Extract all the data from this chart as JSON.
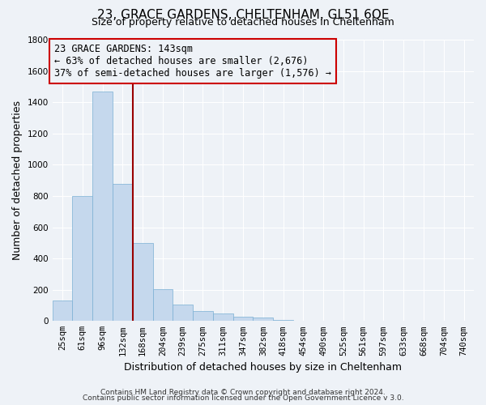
{
  "title": "23, GRACE GARDENS, CHELTENHAM, GL51 6QE",
  "subtitle": "Size of property relative to detached houses in Cheltenham",
  "xlabel": "Distribution of detached houses by size in Cheltenham",
  "ylabel": "Number of detached properties",
  "footer_lines": [
    "Contains HM Land Registry data © Crown copyright and database right 2024.",
    "Contains public sector information licensed under the Open Government Licence v 3.0."
  ],
  "bar_labels": [
    "25sqm",
    "61sqm",
    "96sqm",
    "132sqm",
    "168sqm",
    "204sqm",
    "239sqm",
    "275sqm",
    "311sqm",
    "347sqm",
    "382sqm",
    "418sqm",
    "454sqm",
    "490sqm",
    "525sqm",
    "561sqm",
    "597sqm",
    "633sqm",
    "668sqm",
    "704sqm",
    "740sqm"
  ],
  "bar_values": [
    130,
    800,
    1470,
    880,
    500,
    205,
    105,
    65,
    50,
    30,
    20,
    5,
    0,
    0,
    0,
    0,
    0,
    0,
    0,
    0,
    0
  ],
  "bar_color": "#c5d8ed",
  "bar_edgecolor": "#7aafd4",
  "ylim": [
    0,
    1800
  ],
  "yticks": [
    0,
    200,
    400,
    600,
    800,
    1000,
    1200,
    1400,
    1600,
    1800
  ],
  "vline_index": 3,
  "vline_color": "#990000",
  "annotation_text": "23 GRACE GARDENS: 143sqm\n← 63% of detached houses are smaller (2,676)\n37% of semi-detached houses are larger (1,576) →",
  "annotation_box_edgecolor": "#cc0000",
  "bg_color": "#eef2f7",
  "grid_color": "#ffffff",
  "title_fontsize": 11,
  "subtitle_fontsize": 9,
  "axis_label_fontsize": 9,
  "tick_fontsize": 7.5,
  "annotation_fontsize": 8.5,
  "footer_fontsize": 6.5
}
